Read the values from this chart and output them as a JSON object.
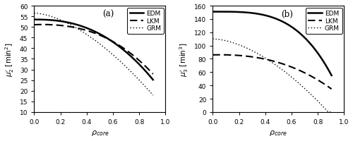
{
  "panel_a": {
    "title": "(a)",
    "ylabel": "$\\mu^{\\prime}_2$ [min$^2$]",
    "xlabel": "$\\rho_{core}$",
    "ylim": [
      10,
      60
    ],
    "xlim": [
      0,
      1
    ],
    "yticks": [
      10,
      15,
      20,
      25,
      30,
      35,
      40,
      45,
      50,
      55,
      60
    ],
    "xticks": [
      0,
      0.2,
      0.4,
      0.6,
      0.8,
      1.0
    ]
  },
  "panel_b": {
    "title": "(b)",
    "ylabel": "$\\mu^{\\prime}_3$ [min$^3$]",
    "xlabel": "$\\rho_{core}$",
    "ylim": [
      0,
      160
    ],
    "xlim": [
      0,
      1
    ],
    "yticks": [
      0,
      20,
      40,
      60,
      80,
      100,
      120,
      140,
      160
    ],
    "xticks": [
      0,
      0.2,
      0.4,
      0.6,
      0.8,
      1.0
    ]
  },
  "rho_max": 0.905,
  "legend_labels": [
    "EDM",
    "LKM",
    "GRM"
  ],
  "line_color": "black"
}
